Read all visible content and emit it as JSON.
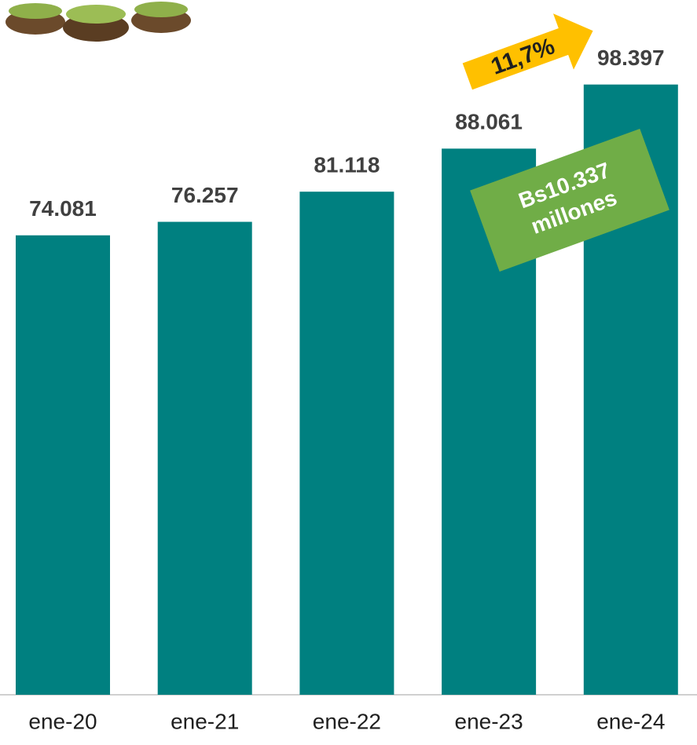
{
  "chart_data": {
    "type": "bar",
    "categories": [
      "ene-20",
      "ene-21",
      "ene-22",
      "ene-23",
      "ene-24"
    ],
    "values": [
      74081,
      76257,
      81118,
      88061,
      98397
    ],
    "value_labels": [
      "74.081",
      "76.257",
      "81.118",
      "88.061",
      "98.397"
    ],
    "color": "#008080",
    "ylim": [
      0,
      100000
    ],
    "annotations": [
      "11,7%",
      "Bs10.337",
      "millones"
    ]
  }
}
